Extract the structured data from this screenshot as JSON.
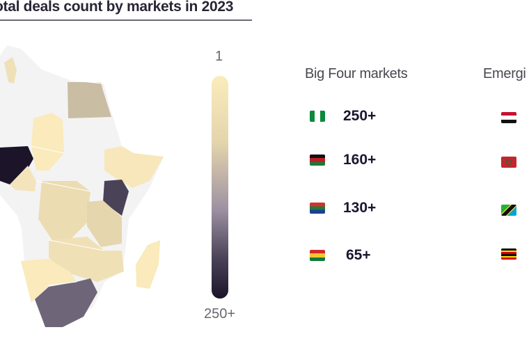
{
  "title": "otal deals count by markets in 2023",
  "legend": {
    "min_label": "1",
    "max_label": "250+"
  },
  "big_four": {
    "heading": "Big Four markets",
    "rows": [
      {
        "flag": "nigeria-flag",
        "count": "250+"
      },
      {
        "flag": "kenya-flag",
        "count": "160+"
      },
      {
        "flag": "south-africa-flag",
        "count": "130+"
      },
      {
        "flag": "ghana-flag",
        "count": "65+"
      }
    ]
  },
  "emerging": {
    "heading": "Emergi",
    "rows": [
      {
        "flag": "egypt-flag"
      },
      {
        "flag": "morocco-flag"
      },
      {
        "flag": "tanzania-flag"
      },
      {
        "flag": "uganda-flag"
      }
    ]
  },
  "colors": {
    "scale_low": "#fbecbb",
    "scale_high": "#1c1429",
    "no_data": "#f3f3f4"
  }
}
